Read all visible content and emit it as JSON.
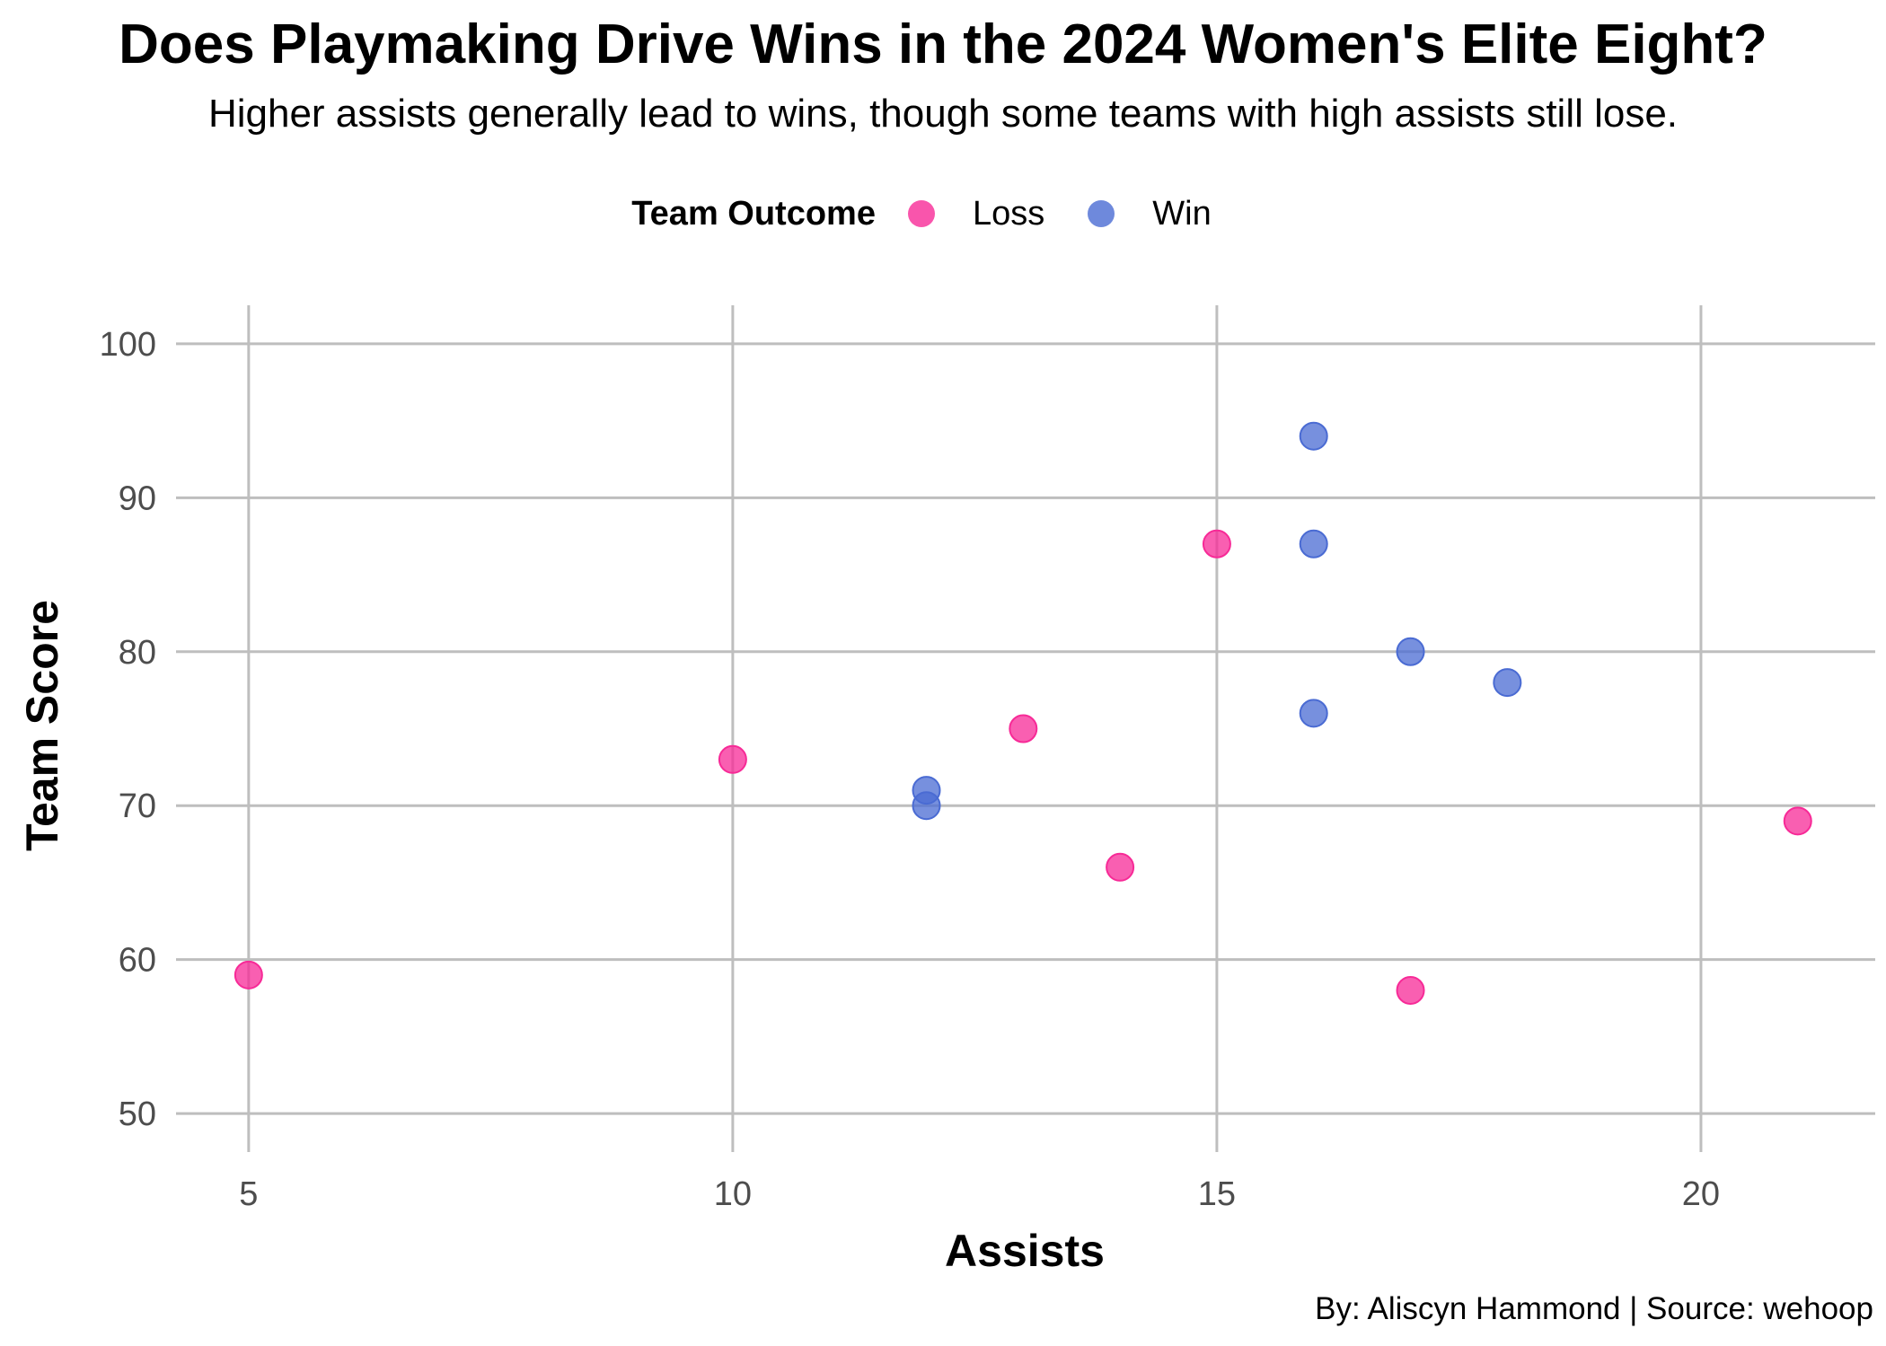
{
  "chart_data": {
    "type": "scatter",
    "title": "Does Playmaking Drive Wins in the 2024 Women's Elite Eight?",
    "subtitle": "Higher assists generally lead to wins, though some teams with high assists still lose.",
    "xlabel": "Assists",
    "ylabel": "Team Score",
    "xlim": [
      4.25,
      21.8
    ],
    "ylim": [
      47.5,
      102.5
    ],
    "xticks": [
      5,
      10,
      15,
      20
    ],
    "yticks": [
      50,
      60,
      70,
      80,
      90,
      100
    ],
    "grid": true,
    "legend": {
      "title": "Team Outcome",
      "placement": "top",
      "entries": [
        {
          "label": "Loss",
          "color": "#f72a97"
        },
        {
          "label": "Win",
          "color": "#4a6bd3"
        }
      ]
    },
    "series": [
      {
        "name": "Loss",
        "color": "#f72a97",
        "points": [
          {
            "x": 5,
            "y": 59
          },
          {
            "x": 10,
            "y": 73
          },
          {
            "x": 13,
            "y": 75
          },
          {
            "x": 14,
            "y": 66
          },
          {
            "x": 15,
            "y": 87
          },
          {
            "x": 17,
            "y": 58
          },
          {
            "x": 21,
            "y": 69
          }
        ]
      },
      {
        "name": "Win",
        "color": "#4a6bd3",
        "points": [
          {
            "x": 12,
            "y": 71
          },
          {
            "x": 12,
            "y": 70
          },
          {
            "x": 16,
            "y": 94
          },
          {
            "x": 16,
            "y": 87
          },
          {
            "x": 16,
            "y": 76
          },
          {
            "x": 17,
            "y": 80
          },
          {
            "x": 18,
            "y": 78
          }
        ]
      }
    ],
    "caption": "By: Aliscyn Hammond | Source: wehoop"
  }
}
